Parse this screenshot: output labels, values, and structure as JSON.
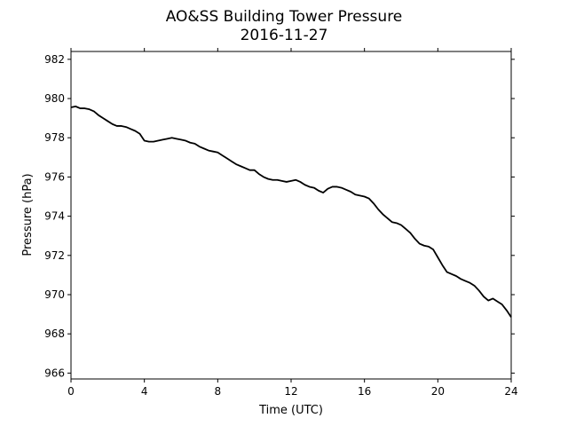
{
  "chart_data": {
    "type": "line",
    "title": "AO&SS Building Tower Pressure",
    "subtitle": "2016-11-27",
    "xlabel": "Time (UTC)",
    "ylabel": "Pressure (hPa)",
    "xlim": [
      0,
      24
    ],
    "ylim": [
      965.7,
      982.4
    ],
    "xticks": [
      0,
      4,
      8,
      12,
      16,
      20,
      24
    ],
    "yticks": [
      966,
      968,
      970,
      972,
      974,
      976,
      978,
      980,
      982
    ],
    "grid": false,
    "series": [
      {
        "color": "#000000",
        "x": [
          0.0,
          0.25,
          0.5,
          0.75,
          1.0,
          1.25,
          1.5,
          1.75,
          2.0,
          2.25,
          2.5,
          2.75,
          3.0,
          3.25,
          3.5,
          3.75,
          4.0,
          4.25,
          4.5,
          4.75,
          5.0,
          5.25,
          5.5,
          5.75,
          6.0,
          6.25,
          6.5,
          6.75,
          7.0,
          7.25,
          7.5,
          7.75,
          8.0,
          8.25,
          8.5,
          8.75,
          9.0,
          9.25,
          9.5,
          9.75,
          10.0,
          10.25,
          10.5,
          10.75,
          11.0,
          11.25,
          11.5,
          11.75,
          12.0,
          12.25,
          12.5,
          12.75,
          13.0,
          13.25,
          13.5,
          13.75,
          14.0,
          14.25,
          14.5,
          14.75,
          15.0,
          15.25,
          15.5,
          15.75,
          16.0,
          16.25,
          16.5,
          16.75,
          17.0,
          17.25,
          17.5,
          17.75,
          18.0,
          18.25,
          18.5,
          18.75,
          19.0,
          19.25,
          19.5,
          19.75,
          20.0,
          20.25,
          20.5,
          20.75,
          21.0,
          21.25,
          21.5,
          21.75,
          22.0,
          22.25,
          22.5,
          22.75,
          23.0,
          23.25,
          23.5,
          23.75,
          24.0
        ],
        "y": [
          979.55,
          979.6,
          979.5,
          979.5,
          979.45,
          979.35,
          979.15,
          979.0,
          978.85,
          978.7,
          978.6,
          978.6,
          978.55,
          978.45,
          978.35,
          978.2,
          977.85,
          977.8,
          977.8,
          977.85,
          977.9,
          977.95,
          978.0,
          977.95,
          977.9,
          977.85,
          977.75,
          977.7,
          977.55,
          977.45,
          977.35,
          977.3,
          977.25,
          977.1,
          976.95,
          976.8,
          976.65,
          976.55,
          976.45,
          976.35,
          976.35,
          976.15,
          976.0,
          975.9,
          975.85,
          975.85,
          975.8,
          975.75,
          975.8,
          975.85,
          975.75,
          975.6,
          975.5,
          975.45,
          975.3,
          975.2,
          975.4,
          975.5,
          975.5,
          975.45,
          975.35,
          975.25,
          975.1,
          975.05,
          975.0,
          974.9,
          974.65,
          974.35,
          974.1,
          973.9,
          973.7,
          973.65,
          973.55,
          973.35,
          973.15,
          972.85,
          972.6,
          972.5,
          972.45,
          972.3,
          971.9,
          971.5,
          971.15,
          971.05,
          970.95,
          970.8,
          970.7,
          970.6,
          970.45,
          970.2,
          969.9,
          969.7,
          969.8,
          969.65,
          969.5,
          969.2,
          968.85
        ]
      }
    ]
  }
}
